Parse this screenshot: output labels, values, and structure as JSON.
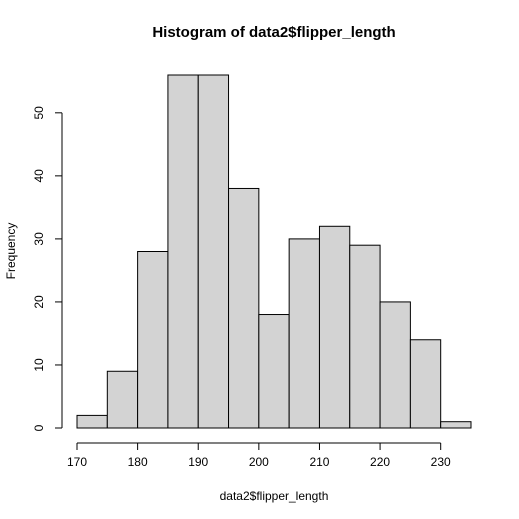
{
  "chart_data": {
    "type": "bar",
    "title": "Histogram of data2$flipper_length",
    "xlabel": "data2$flipper_length",
    "ylabel": "Frequency",
    "bin_edges": [
      170,
      175,
      180,
      185,
      190,
      195,
      200,
      205,
      210,
      215,
      220,
      225,
      230,
      235
    ],
    "values": [
      2,
      9,
      28,
      56,
      56,
      38,
      18,
      30,
      32,
      29,
      20,
      14,
      1
    ],
    "xlim": [
      170,
      235
    ],
    "ylim": [
      0,
      56
    ],
    "x_ticks": [
      170,
      180,
      190,
      200,
      210,
      220,
      230
    ],
    "y_ticks": [
      0,
      10,
      20,
      30,
      40,
      50
    ],
    "bar_color": "#d3d3d3",
    "edge_color": "#000000",
    "grid": false,
    "legend": "none"
  }
}
